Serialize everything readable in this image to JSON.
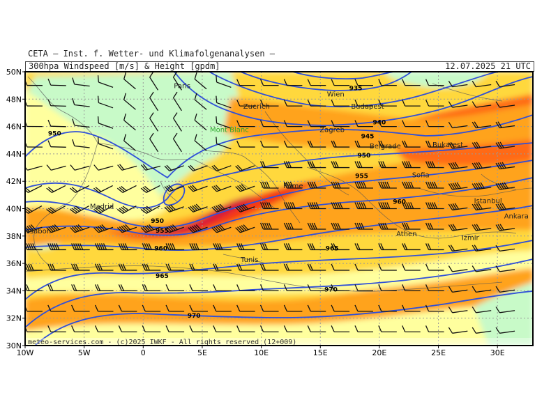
{
  "header": {
    "institution": "CETA — Inst. f. Wetter- und Klimafolgenanalysen —",
    "subtitle": "300hpa Windspeed [m/s] & Height [gpdm]",
    "datetime": "12.07.2025 21 UTC",
    "copyright": "meteo-services.com - (c)2025 IWKF - All rights reserved (12+009)"
  },
  "axes": {
    "lon_ticks": [
      "10W",
      "5W",
      "0",
      "5E",
      "10E",
      "15E",
      "20E",
      "25E",
      "30E"
    ],
    "lat_ticks": [
      "50N",
      "48N",
      "46N",
      "44N",
      "42N",
      "40N",
      "38N",
      "36N",
      "34N",
      "32N",
      "30N"
    ],
    "lon_range": [
      -10,
      33
    ],
    "lat_range": [
      30,
      50
    ]
  },
  "cities": [
    {
      "name": "Paris",
      "lon": 3.3,
      "lat": 48.8
    },
    {
      "name": "Zuerich",
      "lon": 9.6,
      "lat": 47.3
    },
    {
      "name": "Mont Blanc",
      "lon": 7.3,
      "lat": 45.6,
      "color": "#2ea82e"
    },
    {
      "name": "Wien",
      "lon": 16.3,
      "lat": 48.2
    },
    {
      "name": "Budapest",
      "lon": 19.0,
      "lat": 47.3
    },
    {
      "name": "Zagreb",
      "lon": 16.0,
      "lat": 45.6
    },
    {
      "name": "Belgrade",
      "lon": 20.5,
      "lat": 44.4
    },
    {
      "name": "Bukarest",
      "lon": 25.8,
      "lat": 44.5
    },
    {
      "name": "Rome",
      "lon": 12.7,
      "lat": 41.5
    },
    {
      "name": "Sofia",
      "lon": 23.5,
      "lat": 42.3
    },
    {
      "name": "Madrid",
      "lon": -3.5,
      "lat": 40.0
    },
    {
      "name": "Istanbul",
      "lon": 29.2,
      "lat": 40.4
    },
    {
      "name": "Ankara",
      "lon": 31.6,
      "lat": 39.3
    },
    {
      "name": "Lissabon",
      "lon": -9.1,
      "lat": 38.2
    },
    {
      "name": "Athen",
      "lon": 22.3,
      "lat": 38.0
    },
    {
      "name": "Izmir",
      "lon": 27.7,
      "lat": 37.7
    },
    {
      "name": "Tunis",
      "lon": 9.0,
      "lat": 36.1
    }
  ],
  "contour_labels": [
    {
      "text": "935",
      "lon": 18.0,
      "lat": 48.8
    },
    {
      "text": "940",
      "lon": 20.0,
      "lat": 46.3
    },
    {
      "text": "945",
      "lon": 19.0,
      "lat": 45.3
    },
    {
      "text": "950",
      "lon": -7.5,
      "lat": 45.5
    },
    {
      "text": "950",
      "lon": 18.7,
      "lat": 43.9
    },
    {
      "text": "955",
      "lon": 18.5,
      "lat": 42.4
    },
    {
      "text": "960",
      "lon": 21.7,
      "lat": 40.5
    },
    {
      "text": "950",
      "lon": 1.2,
      "lat": 39.1
    },
    {
      "text": "955",
      "lon": 1.6,
      "lat": 38.4
    },
    {
      "text": "960",
      "lon": 1.5,
      "lat": 37.1
    },
    {
      "text": "965",
      "lon": 16.0,
      "lat": 37.1
    },
    {
      "text": "965",
      "lon": 1.6,
      "lat": 35.1
    },
    {
      "text": "970",
      "lon": 15.9,
      "lat": 34.1
    },
    {
      "text": "970",
      "lon": 4.3,
      "lat": 32.2
    }
  ],
  "colors": {
    "wind_10_20": "#c8fac8",
    "wind_20_30": "#ffff9e",
    "wind_30_40": "#ffd83c",
    "wind_40_50": "#ffa31e",
    "wind_50_60": "#ff6a12",
    "wind_60_70": "#f53a18",
    "wind_70_plus": "#d6163a",
    "contour": "#3050d8",
    "grid": "#999999"
  },
  "icons": {
    "barb": "wind-barb-icon"
  }
}
